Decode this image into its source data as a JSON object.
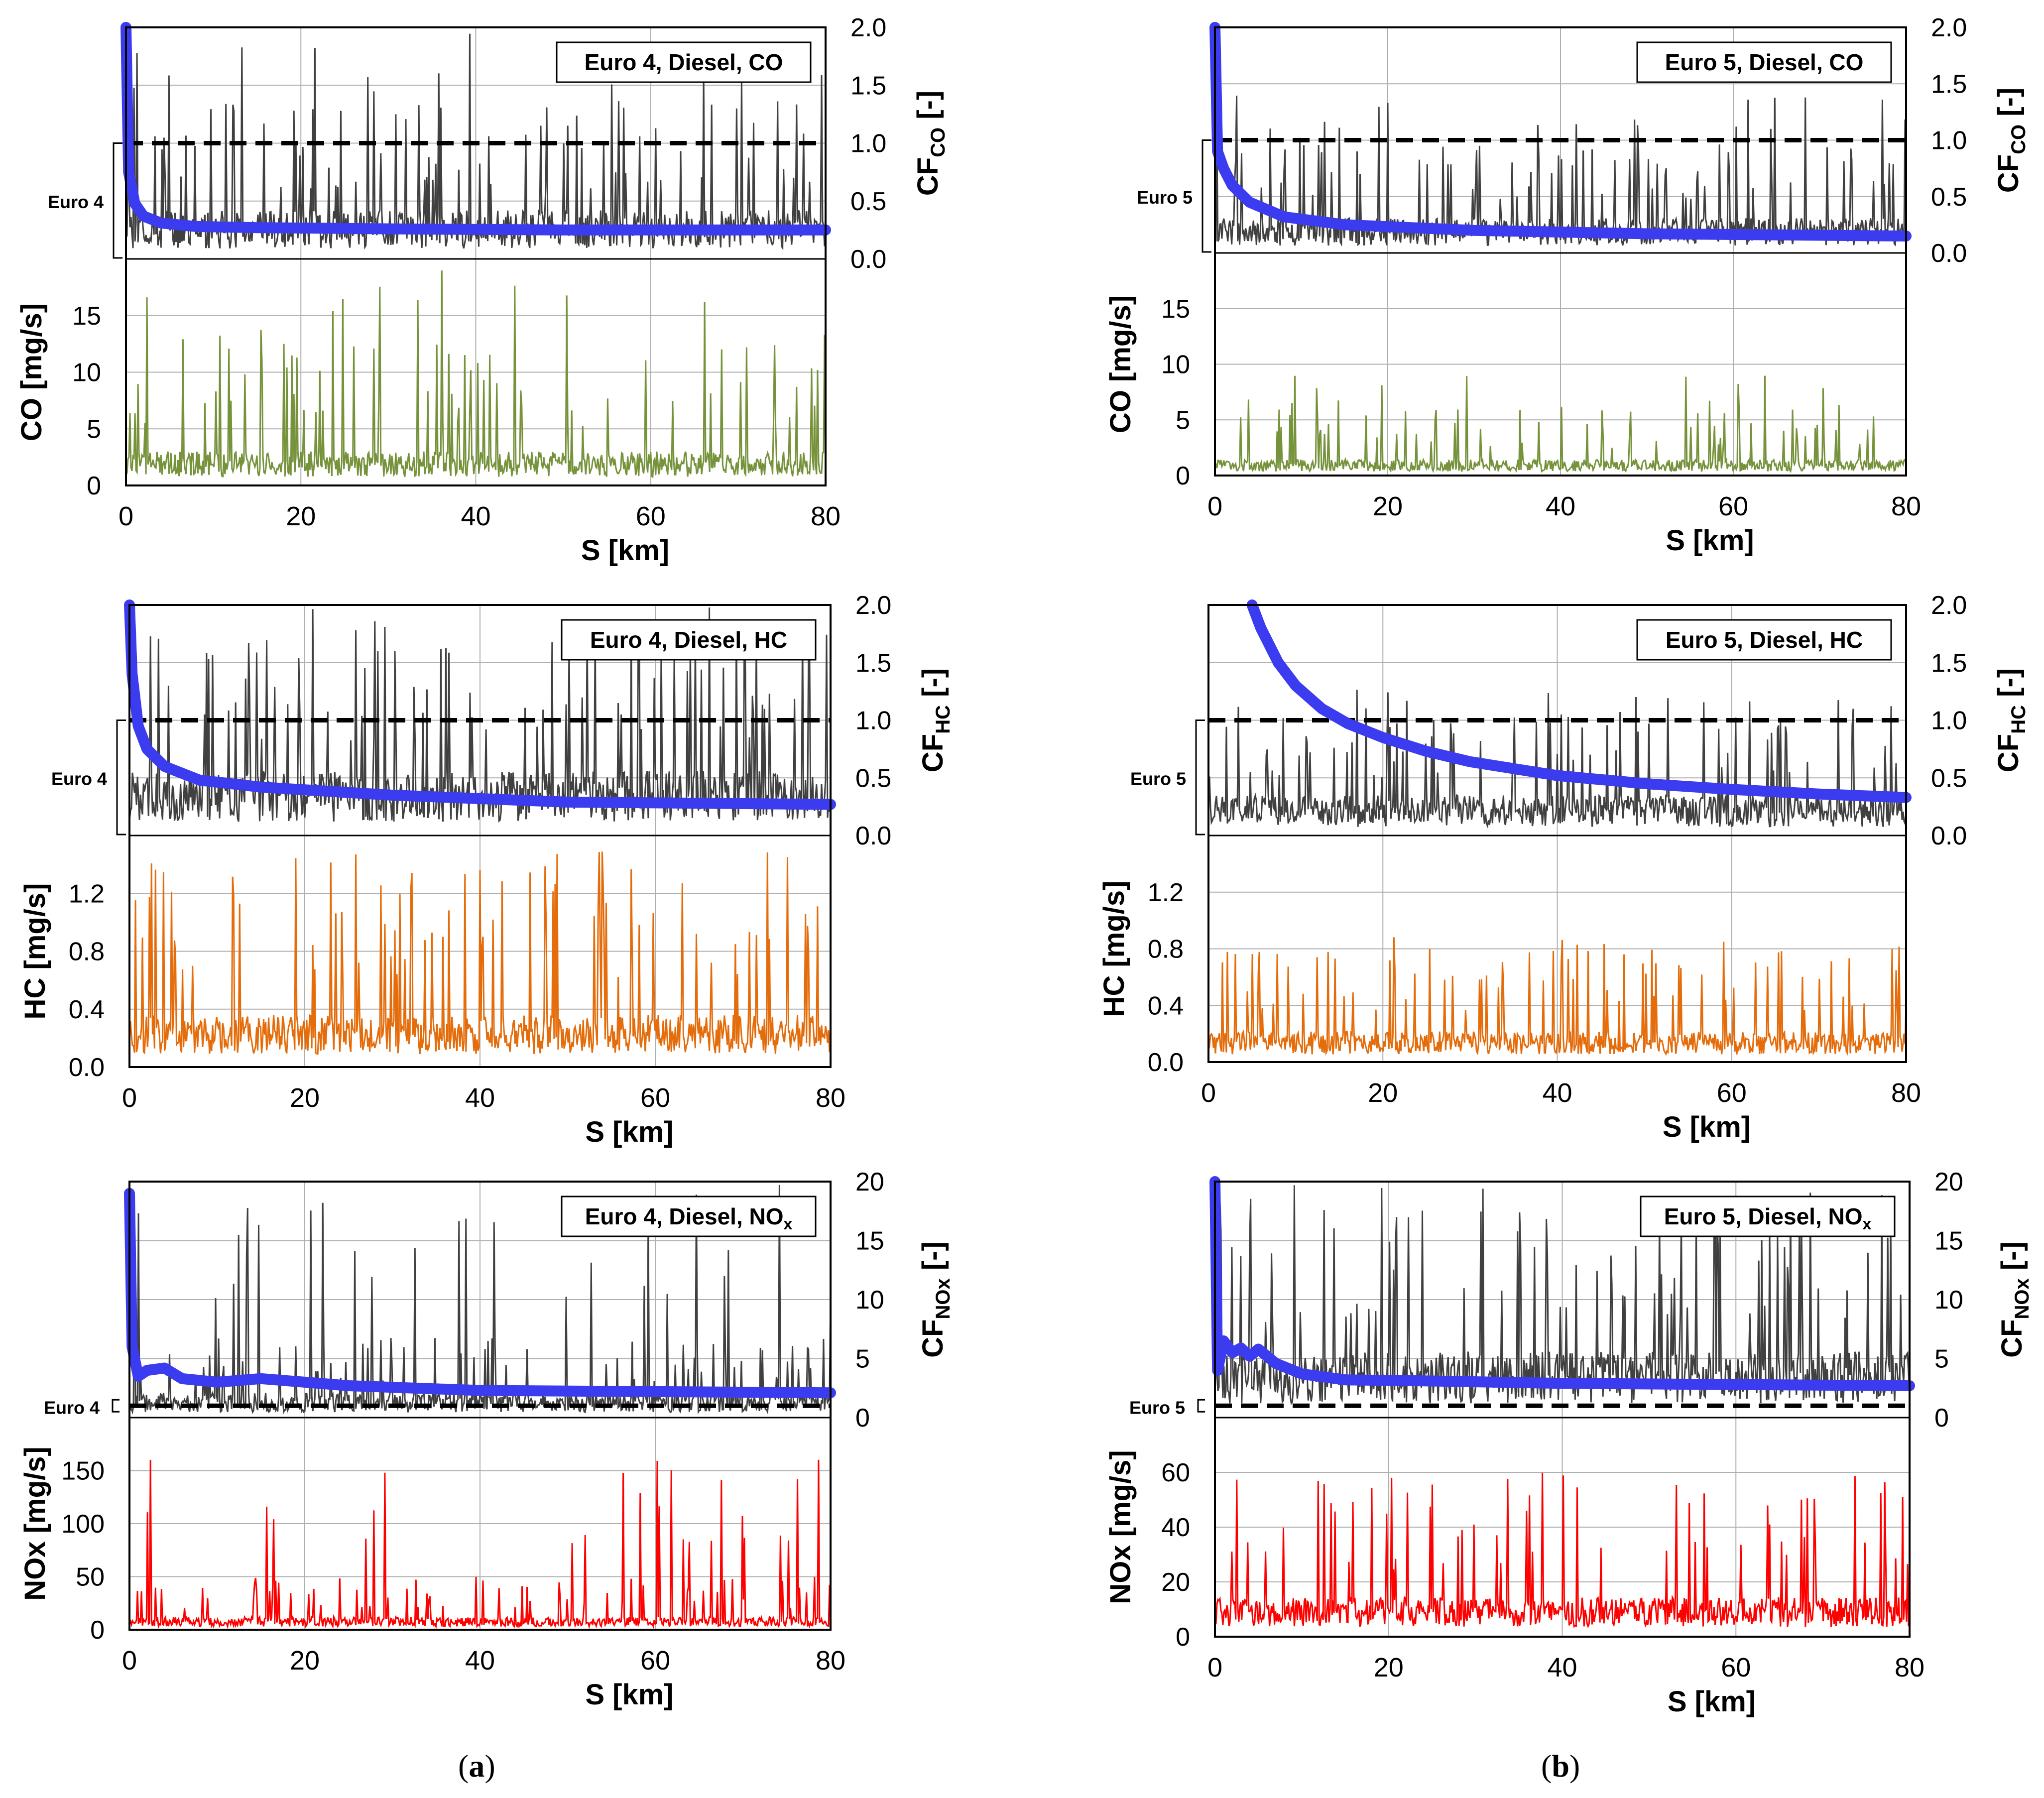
{
  "captions": {
    "a": "a",
    "b": "b"
  },
  "colors": {
    "cf_line": "#3b3bf0",
    "limit_line": "#000000",
    "cf_series": "#404040",
    "co": "#76933c",
    "hc": "#e46c0a",
    "nox": "#ff0000",
    "grid": "#b0b0b0"
  },
  "chart_data": [
    {
      "type": "line",
      "id": "a1",
      "title": "Euro 4, Diesel, CO",
      "standard_label": "Euro 4",
      "xlabel": "S [km]",
      "xlim": [
        0,
        80
      ],
      "xticks": [
        "0",
        "20",
        "40",
        "60",
        "80"
      ],
      "ylabel_bottom": "CO [mg/s]",
      "ylim_bottom": [
        0,
        20
      ],
      "yticks_bottom": [
        "0",
        "5",
        "10",
        "15"
      ],
      "ylabel_top_main": "CF",
      "ylabel_top_sub": "CO",
      "ylabel_top_unit": " [-]",
      "ylim_top": [
        0,
        2.0
      ],
      "yticks_top": [
        "0.0",
        "0.5",
        "1.0",
        "1.5",
        "2.0"
      ],
      "series": [
        {
          "name": "CO emission rate",
          "base": 2.5,
          "spike": 20,
          "decay_km": 0
        },
        {
          "name": "instantaneous CF",
          "base": 0.3,
          "spike": 2.0
        },
        {
          "name": "cumulative CF",
          "x": [
            0,
            0.3,
            1,
            2,
            4,
            8,
            15,
            30,
            50,
            80
          ],
          "y": [
            2.0,
            0.75,
            0.48,
            0.37,
            0.31,
            0.28,
            0.27,
            0.26,
            0.25,
            0.25
          ]
        },
        {
          "name": "limit",
          "y": 1.0
        }
      ]
    },
    {
      "type": "line",
      "id": "b1",
      "title": "Euro 5, Diesel, CO",
      "standard_label": "Euro 5",
      "xlabel": "S [km]",
      "xlim": [
        0,
        80
      ],
      "xticks": [
        "0",
        "20",
        "40",
        "60",
        "80"
      ],
      "ylabel_bottom": "CO [mg/s]",
      "ylim_bottom": [
        0,
        20
      ],
      "yticks_bottom": [
        "0",
        "5",
        "10",
        "15"
      ],
      "ylabel_top_main": "CF",
      "ylabel_top_sub": "CO",
      "ylabel_top_unit": " [-]",
      "ylim_top": [
        0,
        2.0
      ],
      "yticks_top": [
        "0.0",
        "0.5",
        "1.0",
        "1.5",
        "2.0"
      ],
      "series": [
        {
          "name": "CO emission rate",
          "base": 1.2,
          "spike": 9
        },
        {
          "name": "instantaneous CF",
          "base": 0.22,
          "spike": 1.4
        },
        {
          "name": "cumulative CF",
          "x": [
            0,
            0.3,
            1,
            2,
            4,
            8,
            15,
            30,
            50,
            80
          ],
          "y": [
            2.0,
            0.9,
            0.75,
            0.6,
            0.45,
            0.32,
            0.25,
            0.2,
            0.17,
            0.15
          ]
        },
        {
          "name": "limit",
          "y": 1.0
        }
      ]
    },
    {
      "type": "line",
      "id": "a2",
      "title": "Euro 4, Diesel, HC",
      "standard_label": "Euro 4",
      "xlabel": "S [km]",
      "xlim": [
        0,
        80
      ],
      "xticks": [
        "0",
        "20",
        "40",
        "60",
        "80"
      ],
      "ylabel_bottom": "HC [mg/s]",
      "ylim_bottom": [
        0,
        1.6
      ],
      "yticks_bottom": [
        "0.0",
        "0.4",
        "0.8",
        "1.2"
      ],
      "ylabel_top_main": "CF",
      "ylabel_top_sub": "HC",
      "ylabel_top_unit": " [-]",
      "ylim_top": [
        0,
        2.0
      ],
      "yticks_top": [
        "0.0",
        "0.5",
        "1.0",
        "1.5",
        "2.0"
      ],
      "series": [
        {
          "name": "HC emission rate",
          "base": 0.3,
          "spike": 1.5
        },
        {
          "name": "instantaneous CF",
          "base": 0.4,
          "spike": 2.0
        },
        {
          "name": "cumulative CF",
          "x": [
            0,
            0.3,
            1,
            2,
            4,
            8,
            15,
            30,
            50,
            80
          ],
          "y": [
            2.0,
            1.4,
            0.95,
            0.75,
            0.6,
            0.48,
            0.42,
            0.35,
            0.29,
            0.27
          ]
        },
        {
          "name": "limit",
          "y": 1.0
        }
      ]
    },
    {
      "type": "line",
      "id": "b2",
      "title": "Euro 5, Diesel, HC",
      "standard_label": "Euro 5",
      "xlabel": "S [km]",
      "xlim": [
        0,
        80
      ],
      "xticks": [
        "0",
        "20",
        "40",
        "60",
        "80"
      ],
      "ylabel_bottom": "HC [mg/s]",
      "ylim_bottom": [
        0,
        1.6
      ],
      "yticks_bottom": [
        "0.0",
        "0.4",
        "0.8",
        "1.2"
      ],
      "ylabel_top_main": "CF",
      "ylabel_top_sub": "HC",
      "ylabel_top_unit": " [-]",
      "ylim_top": [
        0,
        2.0
      ],
      "yticks_top": [
        "0.0",
        "0.5",
        "1.0",
        "1.5",
        "2.0"
      ],
      "series": [
        {
          "name": "HC emission rate",
          "base": 0.18,
          "spike": 0.8
        },
        {
          "name": "instantaneous CF",
          "base": 0.25,
          "spike": 1.3
        },
        {
          "name": "cumulative CF",
          "x": [
            5,
            6,
            8,
            10,
            13,
            16,
            20,
            25,
            30,
            40,
            50,
            60,
            70,
            80
          ],
          "y": [
            2.0,
            1.8,
            1.5,
            1.3,
            1.1,
            0.97,
            0.85,
            0.73,
            0.64,
            0.52,
            0.45,
            0.4,
            0.36,
            0.33
          ]
        },
        {
          "name": "limit",
          "y": 1.0
        }
      ]
    },
    {
      "type": "line",
      "id": "a3",
      "title_main": "Euro 4, Diesel, NO",
      "title_sub": "x",
      "standard_label": "Euro 4",
      "xlabel": "S [km]",
      "xlim": [
        0,
        80
      ],
      "xticks": [
        "0",
        "20",
        "40",
        "60",
        "80"
      ],
      "ylabel_bottom": "NOx [mg/s]",
      "ylim_bottom": [
        0,
        200
      ],
      "yticks_bottom": [
        "0",
        "50",
        "100",
        "150"
      ],
      "ylabel_top_main": "CF",
      "ylabel_top_sub": "NOx",
      "ylabel_top_unit": " [-]",
      "ylim_top": [
        0,
        20
      ],
      "yticks_top": [
        "0",
        "5",
        "10",
        "15",
        "20"
      ],
      "series": [
        {
          "name": "NOx emission rate",
          "base": 10,
          "spike": 170
        },
        {
          "name": "instantaneous CF",
          "base": 1.5,
          "spike": 20
        },
        {
          "name": "cumulative CF",
          "x": [
            0,
            0.3,
            1,
            2,
            4,
            6,
            10,
            15,
            25,
            40,
            60,
            80
          ],
          "y": [
            19,
            6,
            3.5,
            4.0,
            4.2,
            3.3,
            3.0,
            3.3,
            2.7,
            2.3,
            2.2,
            2.1
          ]
        },
        {
          "name": "limit",
          "y": 1.0
        }
      ]
    },
    {
      "type": "line",
      "id": "b3",
      "title_main": "Euro 5, Diesel, NO",
      "title_sub": "x",
      "standard_label": "Euro 5",
      "xlabel": "S [km]",
      "xlim": [
        0,
        80
      ],
      "xticks": [
        "0",
        "20",
        "40",
        "60",
        "80"
      ],
      "ylabel_bottom": "NOx [mg/s]",
      "ylim_bottom": [
        0,
        80
      ],
      "yticks_bottom": [
        "0",
        "20",
        "40",
        "60"
      ],
      "ylabel_top_main": "CF",
      "ylabel_top_sub": "NOx",
      "ylabel_top_unit": " [-]",
      "ylim_top": [
        0,
        20
      ],
      "yticks_top": [
        "0",
        "5",
        "10",
        "15",
        "20"
      ],
      "series": [
        {
          "name": "NOx emission rate",
          "base": 12,
          "spike": 62
        },
        {
          "name": "instantaneous CF",
          "base": 4,
          "spike": 20
        },
        {
          "name": "cumulative CF",
          "x": [
            0,
            0.3,
            1,
            2,
            3,
            4,
            5,
            7,
            10,
            15,
            25,
            40,
            60,
            80
          ],
          "y": [
            20,
            4,
            6.5,
            5.5,
            5.9,
            5.2,
            5.8,
            4.6,
            3.7,
            3.2,
            3.1,
            2.9,
            2.8,
            2.7
          ]
        },
        {
          "name": "limit",
          "y": 1.0
        }
      ]
    }
  ]
}
